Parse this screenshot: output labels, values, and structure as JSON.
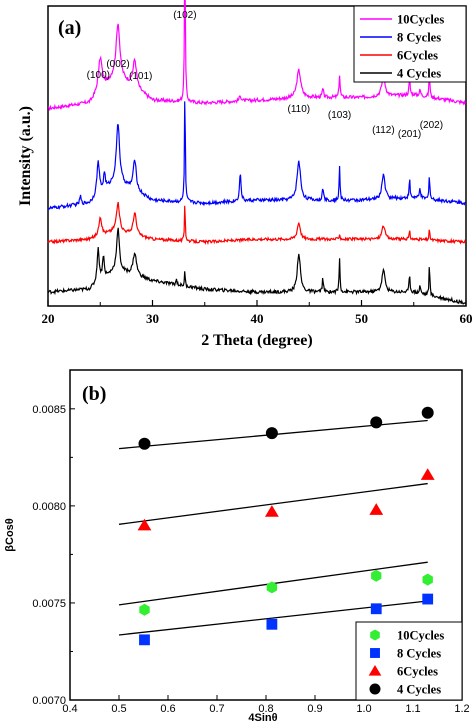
{
  "chart_data": [
    {
      "panel": "(a)",
      "type": "line",
      "xlabel": "2 Theta (degree)",
      "ylabel": "Intensity (a.u.)",
      "xlim": [
        20,
        60
      ],
      "xticks": [
        "20",
        "30",
        "40",
        "50",
        "60"
      ],
      "peaks": [
        {
          "label": "(100)",
          "x": 25.0
        },
        {
          "label": "(002)",
          "x": 26.7
        },
        {
          "label": "(101)",
          "x": 28.3
        },
        {
          "label": "(102)",
          "x": 33.1
        },
        {
          "label": "(110)",
          "x": 44.0
        },
        {
          "label": "(103)",
          "x": 47.9
        },
        {
          "label": "(112)",
          "x": 52.1
        },
        {
          "label": "(201)",
          "x": 54.6
        },
        {
          "label": "(202)",
          "x": 56.5
        }
      ],
      "legend_position": "top-right",
      "series": [
        {
          "name": "10Cycles",
          "color": "#ff00ff",
          "offset": 0.66,
          "noise": 0.012,
          "scale": 1.0,
          "background": [
            [
              20,
              0.0
            ],
            [
              24,
              0.02
            ],
            [
              26.5,
              0.12
            ],
            [
              30,
              0.03
            ],
            [
              35,
              0.02
            ],
            [
              40,
              0.03
            ],
            [
              45,
              0.04
            ],
            [
              50,
              0.04
            ],
            [
              55,
              0.05
            ],
            [
              60,
              0.02
            ]
          ],
          "peaks": [
            [
              25.0,
              0.12,
              0.45
            ],
            [
              26.7,
              0.19,
              0.4
            ],
            [
              28.3,
              0.1,
              0.4
            ],
            [
              33.1,
              0.56,
              0.1
            ],
            [
              38.4,
              0.02,
              0.2
            ],
            [
              44.0,
              0.1,
              0.45
            ],
            [
              46.3,
              0.03,
              0.15
            ],
            [
              47.9,
              0.08,
              0.12
            ],
            [
              52.1,
              0.07,
              0.4
            ],
            [
              54.6,
              0.06,
              0.12
            ],
            [
              55.6,
              0.02,
              0.15
            ],
            [
              56.5,
              0.09,
              0.1
            ]
          ]
        },
        {
          "name": "8 Cycles",
          "color": "#0000ff",
          "offset": 0.3,
          "noise": 0.012,
          "scale": 1.0,
          "background": [
            [
              20,
              0.0
            ],
            [
              24,
              0.02
            ],
            [
              26.5,
              0.1
            ],
            [
              30,
              0.03
            ],
            [
              35,
              0.02
            ],
            [
              40,
              0.03
            ],
            [
              45,
              0.03
            ],
            [
              50,
              0.03
            ],
            [
              55,
              0.04
            ],
            [
              60,
              0.02
            ]
          ],
          "peaks": [
            [
              23.1,
              0.03,
              0.15
            ],
            [
              24.8,
              0.12,
              0.3
            ],
            [
              25.4,
              0.06,
              0.2
            ],
            [
              26.7,
              0.21,
              0.35
            ],
            [
              28.3,
              0.11,
              0.35
            ],
            [
              33.1,
              0.43,
              0.09
            ],
            [
              38.4,
              0.1,
              0.18
            ],
            [
              44.0,
              0.14,
              0.4
            ],
            [
              46.3,
              0.05,
              0.12
            ],
            [
              47.9,
              0.12,
              0.1
            ],
            [
              52.1,
              0.09,
              0.35
            ],
            [
              54.6,
              0.07,
              0.1
            ],
            [
              55.6,
              0.04,
              0.12
            ],
            [
              56.5,
              0.1,
              0.09
            ]
          ]
        },
        {
          "name": "6Cycles",
          "color": "#ff0000",
          "offset": 0.18,
          "noise": 0.01,
          "scale": 1.0,
          "background": [
            [
              20,
              0.0
            ],
            [
              24,
              0.01
            ],
            [
              26.5,
              0.04
            ],
            [
              30,
              0.01
            ],
            [
              35,
              0.0
            ],
            [
              40,
              0.01
            ],
            [
              45,
              0.01
            ],
            [
              50,
              0.01
            ],
            [
              55,
              0.01
            ],
            [
              60,
              0.0
            ]
          ],
          "peaks": [
            [
              25.0,
              0.07,
              0.3
            ],
            [
              26.7,
              0.1,
              0.35
            ],
            [
              28.3,
              0.08,
              0.35
            ],
            [
              33.1,
              0.16,
              0.08
            ],
            [
              44.0,
              0.06,
              0.35
            ],
            [
              47.9,
              0.02,
              0.1
            ],
            [
              52.1,
              0.05,
              0.35
            ],
            [
              54.6,
              0.03,
              0.1
            ],
            [
              56.5,
              0.04,
              0.09
            ]
          ]
        },
        {
          "name": "4 Cycles",
          "color": "#000000",
          "offset": 0.0,
          "noise": 0.012,
          "scale": 1.0,
          "background": [
            [
              20,
              0.0
            ],
            [
              24,
              0.01
            ],
            [
              26.5,
              0.08
            ],
            [
              30,
              0.04
            ],
            [
              35,
              0.01
            ],
            [
              40,
              0.0
            ],
            [
              45,
              0.0
            ],
            [
              50,
              0.0
            ],
            [
              55,
              0.0
            ],
            [
              60,
              -0.04
            ]
          ],
          "peaks": [
            [
              24.8,
              0.12,
              0.25
            ],
            [
              25.3,
              0.08,
              0.2
            ],
            [
              26.7,
              0.15,
              0.3
            ],
            [
              28.3,
              0.08,
              0.4
            ],
            [
              32.3,
              0.02,
              0.12
            ],
            [
              33.1,
              0.06,
              0.08
            ],
            [
              44.0,
              0.14,
              0.35
            ],
            [
              46.3,
              0.05,
              0.12
            ],
            [
              47.9,
              0.12,
              0.1
            ],
            [
              52.1,
              0.08,
              0.35
            ],
            [
              54.6,
              0.07,
              0.1
            ],
            [
              55.6,
              0.03,
              0.12
            ],
            [
              56.5,
              0.12,
              0.09
            ]
          ]
        }
      ]
    },
    {
      "panel": "(b)",
      "type": "scatter",
      "xlabel": "4Sinθ",
      "ylabel": "βCosθ",
      "xlim": [
        0.4,
        1.2
      ],
      "ylim": [
        0.007,
        0.0087
      ],
      "xticks": [
        "0.4",
        "0.5",
        "0.6",
        "0.7",
        "0.8",
        "0.9",
        "1.0",
        "1.1",
        "1.2"
      ],
      "yticks": [
        "0.0070",
        "0.0075",
        "0.0080",
        "0.0085"
      ],
      "legend_position": "bottom-right",
      "series": [
        {
          "name": "10Cycles",
          "marker": "hexagon",
          "color": "#33ee33",
          "x": [
            0.552,
            0.812,
            1.025,
            1.13
          ],
          "y": [
            0.007465,
            0.00758,
            0.00764,
            0.00762
          ],
          "fit": [
            [
              0.5,
              0.00749
            ],
            [
              1.13,
              0.00771
            ]
          ]
        },
        {
          "name": "8 Cycles",
          "marker": "square",
          "color": "#0033ff",
          "x": [
            0.552,
            0.812,
            1.025,
            1.13
          ],
          "y": [
            0.00731,
            0.00739,
            0.00747,
            0.00752
          ],
          "fit": [
            [
              0.5,
              0.007335
            ],
            [
              1.13,
              0.00751
            ]
          ]
        },
        {
          "name": "6Cycles",
          "marker": "triangle",
          "color": "#ff0000",
          "x": [
            0.552,
            0.812,
            1.025,
            1.13
          ],
          "y": [
            0.0079,
            0.00797,
            0.00798,
            0.00816
          ],
          "fit": [
            [
              0.5,
              0.007905
            ],
            [
              1.13,
              0.008115
            ]
          ]
        },
        {
          "name": "4 Cycles",
          "marker": "circle",
          "color": "#000000",
          "x": [
            0.552,
            0.812,
            1.025,
            1.13
          ],
          "y": [
            0.00832,
            0.008375,
            0.00843,
            0.00848
          ],
          "fit": [
            [
              0.5,
              0.008295
            ],
            [
              1.13,
              0.00844
            ]
          ]
        }
      ]
    }
  ]
}
